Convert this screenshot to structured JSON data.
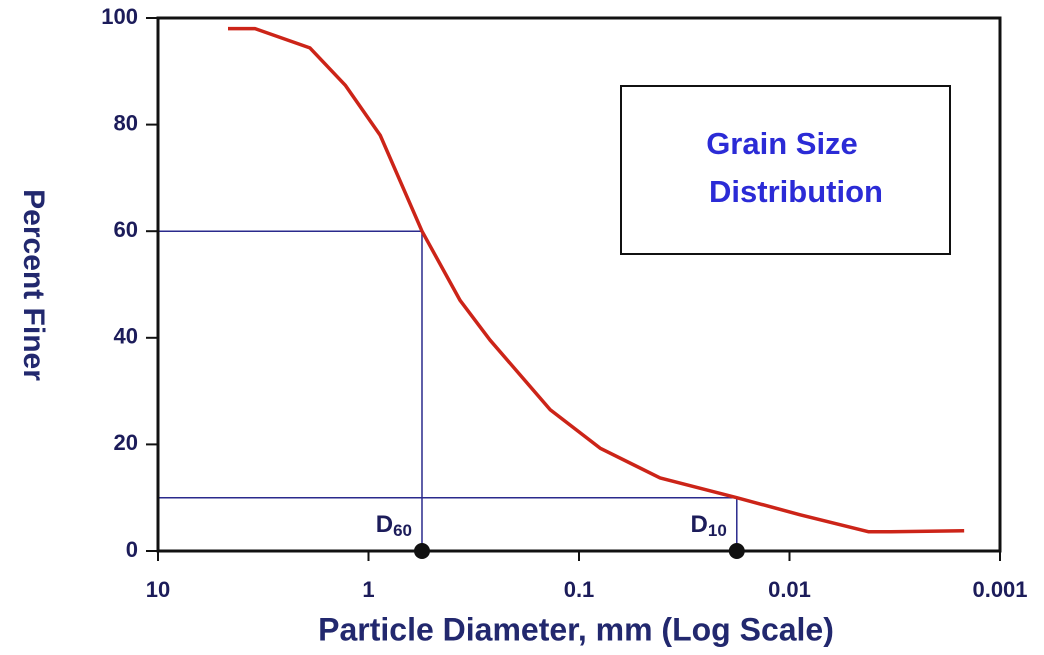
{
  "chart_data": {
    "type": "line",
    "xlabel": "Particle Diameter, mm  (Log Scale)",
    "ylabel": "Percent Finer",
    "annotation_lines": [
      "Grain Size",
      "Distribution"
    ],
    "xscale": "log",
    "xlim": [
      10,
      0.001
    ],
    "xticks": [
      10,
      1,
      0.1,
      0.01,
      0.001
    ],
    "ylim": [
      0,
      100
    ],
    "yticks": [
      0,
      20,
      40,
      60,
      80,
      100
    ],
    "series": [
      {
        "color": "#cc2418",
        "x": [
          4.65,
          3.46,
          1.9,
          1.29,
          0.88,
          0.557,
          0.367,
          0.265,
          0.137,
          0.0794,
          0.0412,
          0.0178,
          0.0089,
          0.0042,
          0.0033,
          0.00148
        ],
        "values": [
          98,
          98,
          94.4,
          87.4,
          78,
          60,
          47,
          39.6,
          26.5,
          19.3,
          13.7,
          10,
          6.8,
          3.6,
          3.6,
          3.8
        ]
      }
    ],
    "guides": [
      {
        "label": "D",
        "subscript": "60",
        "x": 0.557,
        "y": 60
      },
      {
        "label": "D",
        "subscript": "10",
        "x": 0.0178,
        "y": 10
      }
    ]
  }
}
